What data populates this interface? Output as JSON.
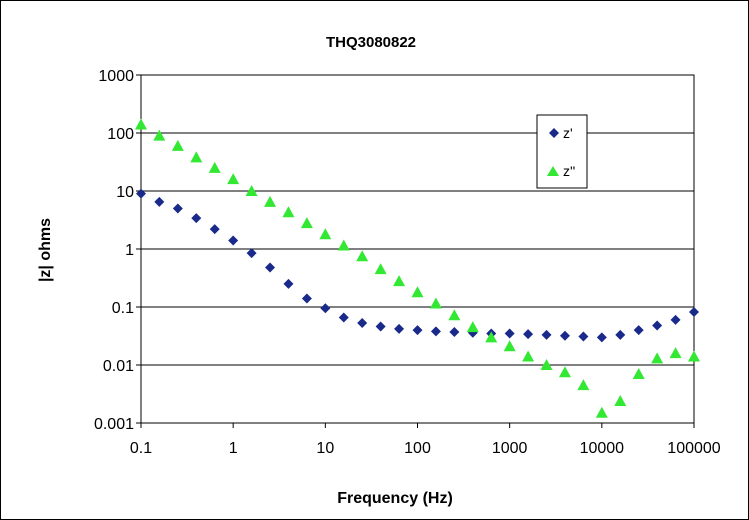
{
  "chart_data": {
    "type": "scatter",
    "title": "THQ3080822",
    "xlabel": "Frequency (Hz)",
    "ylabel": "|z| ohms",
    "xscale": "log",
    "yscale": "log",
    "xlim": [
      0.1,
      100000
    ],
    "ylim": [
      0.001,
      1000
    ],
    "x_tick_labels": [
      "0.1",
      "1",
      "10",
      "100",
      "1000",
      "10000",
      "100000"
    ],
    "y_tick_labels": [
      "1000",
      "100",
      "10",
      "1",
      "0.1",
      "0.01",
      "0.001"
    ],
    "grid": "horizontal major gridlines",
    "legend_position": "top-right",
    "x": [
      0.1,
      0.158,
      0.251,
      0.398,
      0.631,
      1,
      1.585,
      2.512,
      3.981,
      6.31,
      10,
      15.85,
      25.12,
      39.81,
      63.1,
      100,
      158.5,
      251.2,
      398.1,
      631,
      1000,
      1585,
      2512,
      3981,
      6310,
      10000,
      15850,
      25120,
      39810,
      63100,
      100000
    ],
    "series": [
      {
        "name": "z'",
        "marker": "diamond",
        "color": "#1a2a8a",
        "values": [
          9,
          6.5,
          5,
          3.4,
          2.2,
          1.4,
          0.85,
          0.48,
          0.25,
          0.14,
          0.095,
          0.066,
          0.053,
          0.046,
          0.042,
          0.04,
          0.038,
          0.037,
          0.036,
          0.035,
          0.035,
          0.034,
          0.033,
          0.032,
          0.031,
          0.03,
          0.033,
          0.04,
          0.048,
          0.06,
          0.082
        ]
      },
      {
        "name": "z''",
        "marker": "triangle",
        "color": "#33e833",
        "values": [
          140,
          90,
          60,
          38,
          25,
          16,
          10,
          6.5,
          4.3,
          2.8,
          1.8,
          1.15,
          0.75,
          0.45,
          0.28,
          0.18,
          0.115,
          0.072,
          0.045,
          0.03,
          0.021,
          0.014,
          0.01,
          0.0075,
          0.0045,
          0.0015,
          0.0024,
          0.007,
          0.013,
          0.016,
          0.014
        ]
      }
    ]
  }
}
